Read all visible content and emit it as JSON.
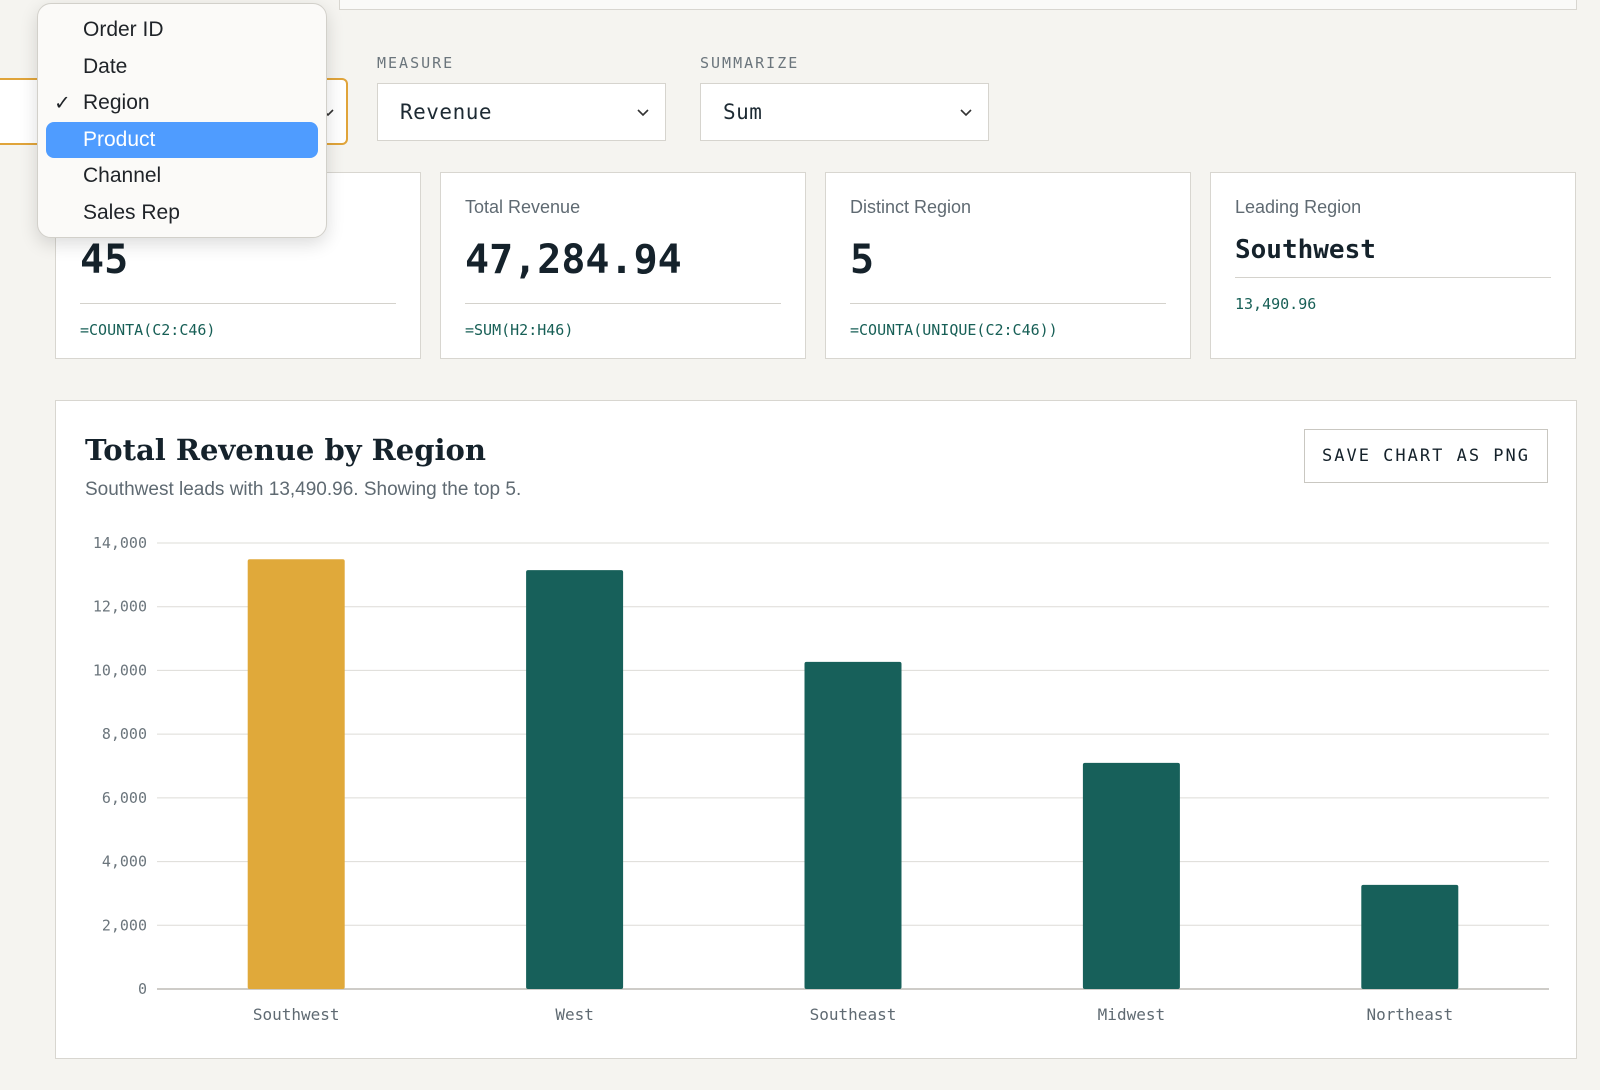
{
  "controls": {
    "measure_label": "MEASURE",
    "measure_value": "Revenue",
    "summarize_label": "SUMMARIZE",
    "summarize_value": "Sum",
    "dimension_value": "Region"
  },
  "dimension_menu": {
    "items": [
      {
        "label": "Order ID",
        "checked": false,
        "highlighted": false
      },
      {
        "label": "Date",
        "checked": false,
        "highlighted": false
      },
      {
        "label": "Region",
        "checked": true,
        "highlighted": false
      },
      {
        "label": "Product",
        "checked": false,
        "highlighted": true
      },
      {
        "label": "Channel",
        "checked": false,
        "highlighted": false
      },
      {
        "label": "Sales Rep",
        "checked": false,
        "highlighted": false
      }
    ],
    "check_mark": "✓"
  },
  "cards": [
    {
      "title": "",
      "value": "45",
      "formula": "=COUNTA(C2:C46)"
    },
    {
      "title": "Total Revenue",
      "value": "47,284.94",
      "formula": "=SUM(H2:H46)"
    },
    {
      "title": "Distinct Region",
      "value": "5",
      "formula": "=COUNTA(UNIQUE(C2:C46))"
    },
    {
      "title": "Leading Region",
      "value": "Southwest",
      "formula": "13,490.96"
    }
  ],
  "chart": {
    "title": "Total Revenue by Region",
    "subtitle": "Southwest leads with 13,490.96. Showing the top 5.",
    "save_label": "SAVE CHART AS PNG"
  },
  "colors": {
    "accent": "#e0a93a",
    "primary": "#17605a",
    "highlight": "#4f9cff"
  },
  "chart_data": {
    "type": "bar",
    "categories": [
      "Southwest",
      "West",
      "Southeast",
      "Midwest",
      "Northeast"
    ],
    "values": [
      13490.96,
      13150,
      10270,
      7100,
      3270
    ],
    "highlight_index": 0,
    "ylim": [
      0,
      14000
    ],
    "yticks": [
      0,
      2000,
      4000,
      6000,
      8000,
      10000,
      12000,
      14000
    ],
    "ytick_labels": [
      "0",
      "2,000",
      "4,000",
      "6,000",
      "8,000",
      "10,000",
      "12,000",
      "14,000"
    ],
    "grid": true,
    "title": "Total Revenue by Region",
    "xlabel": "",
    "ylabel": ""
  }
}
